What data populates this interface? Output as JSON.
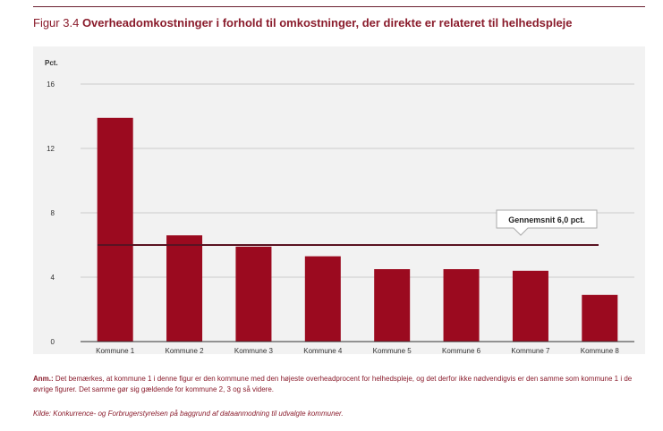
{
  "figure": {
    "label": "Figur 3.4",
    "title": "Overheadomkostninger i forhold til omkostninger, der direkte er relateret til helhedspleje"
  },
  "note": {
    "label": "Anm.:",
    "text": "Det bemærkes, at kommune 1 i denne figur er den kommune med den højeste overheadprocent for helhedspleje, og det derfor ikke nødvendigvis er den samme som kommune 1 i de øvrige figurer. Det samme gør sig gældende for kommune 2, 3 og så videre."
  },
  "source": "Kilde: Konkurrence- og Forbrugerstyrelsen på baggrund af dataanmodning til udvalgte kommuner.",
  "chart_data": {
    "type": "bar",
    "ylabel": "Pct.",
    "ylim": [
      0,
      16
    ],
    "yticks": [
      0,
      4,
      8,
      12,
      16
    ],
    "categories": [
      "Kommune 1",
      "Kommune 2",
      "Kommune 3",
      "Kommune 4",
      "Kommune 5",
      "Kommune 6",
      "Kommune 7",
      "Kommune 8"
    ],
    "values": [
      13.9,
      6.6,
      5.9,
      5.3,
      4.5,
      4.5,
      4.4,
      2.9
    ],
    "reference_line": {
      "value": 6.0,
      "label": "Gennemsnit 6,0 pct."
    },
    "grid": true,
    "colors": {
      "bar": "#9b0a1f",
      "reference_line": "#5a1322",
      "grid": "#cccccc",
      "background": "#f2f2f2"
    }
  }
}
